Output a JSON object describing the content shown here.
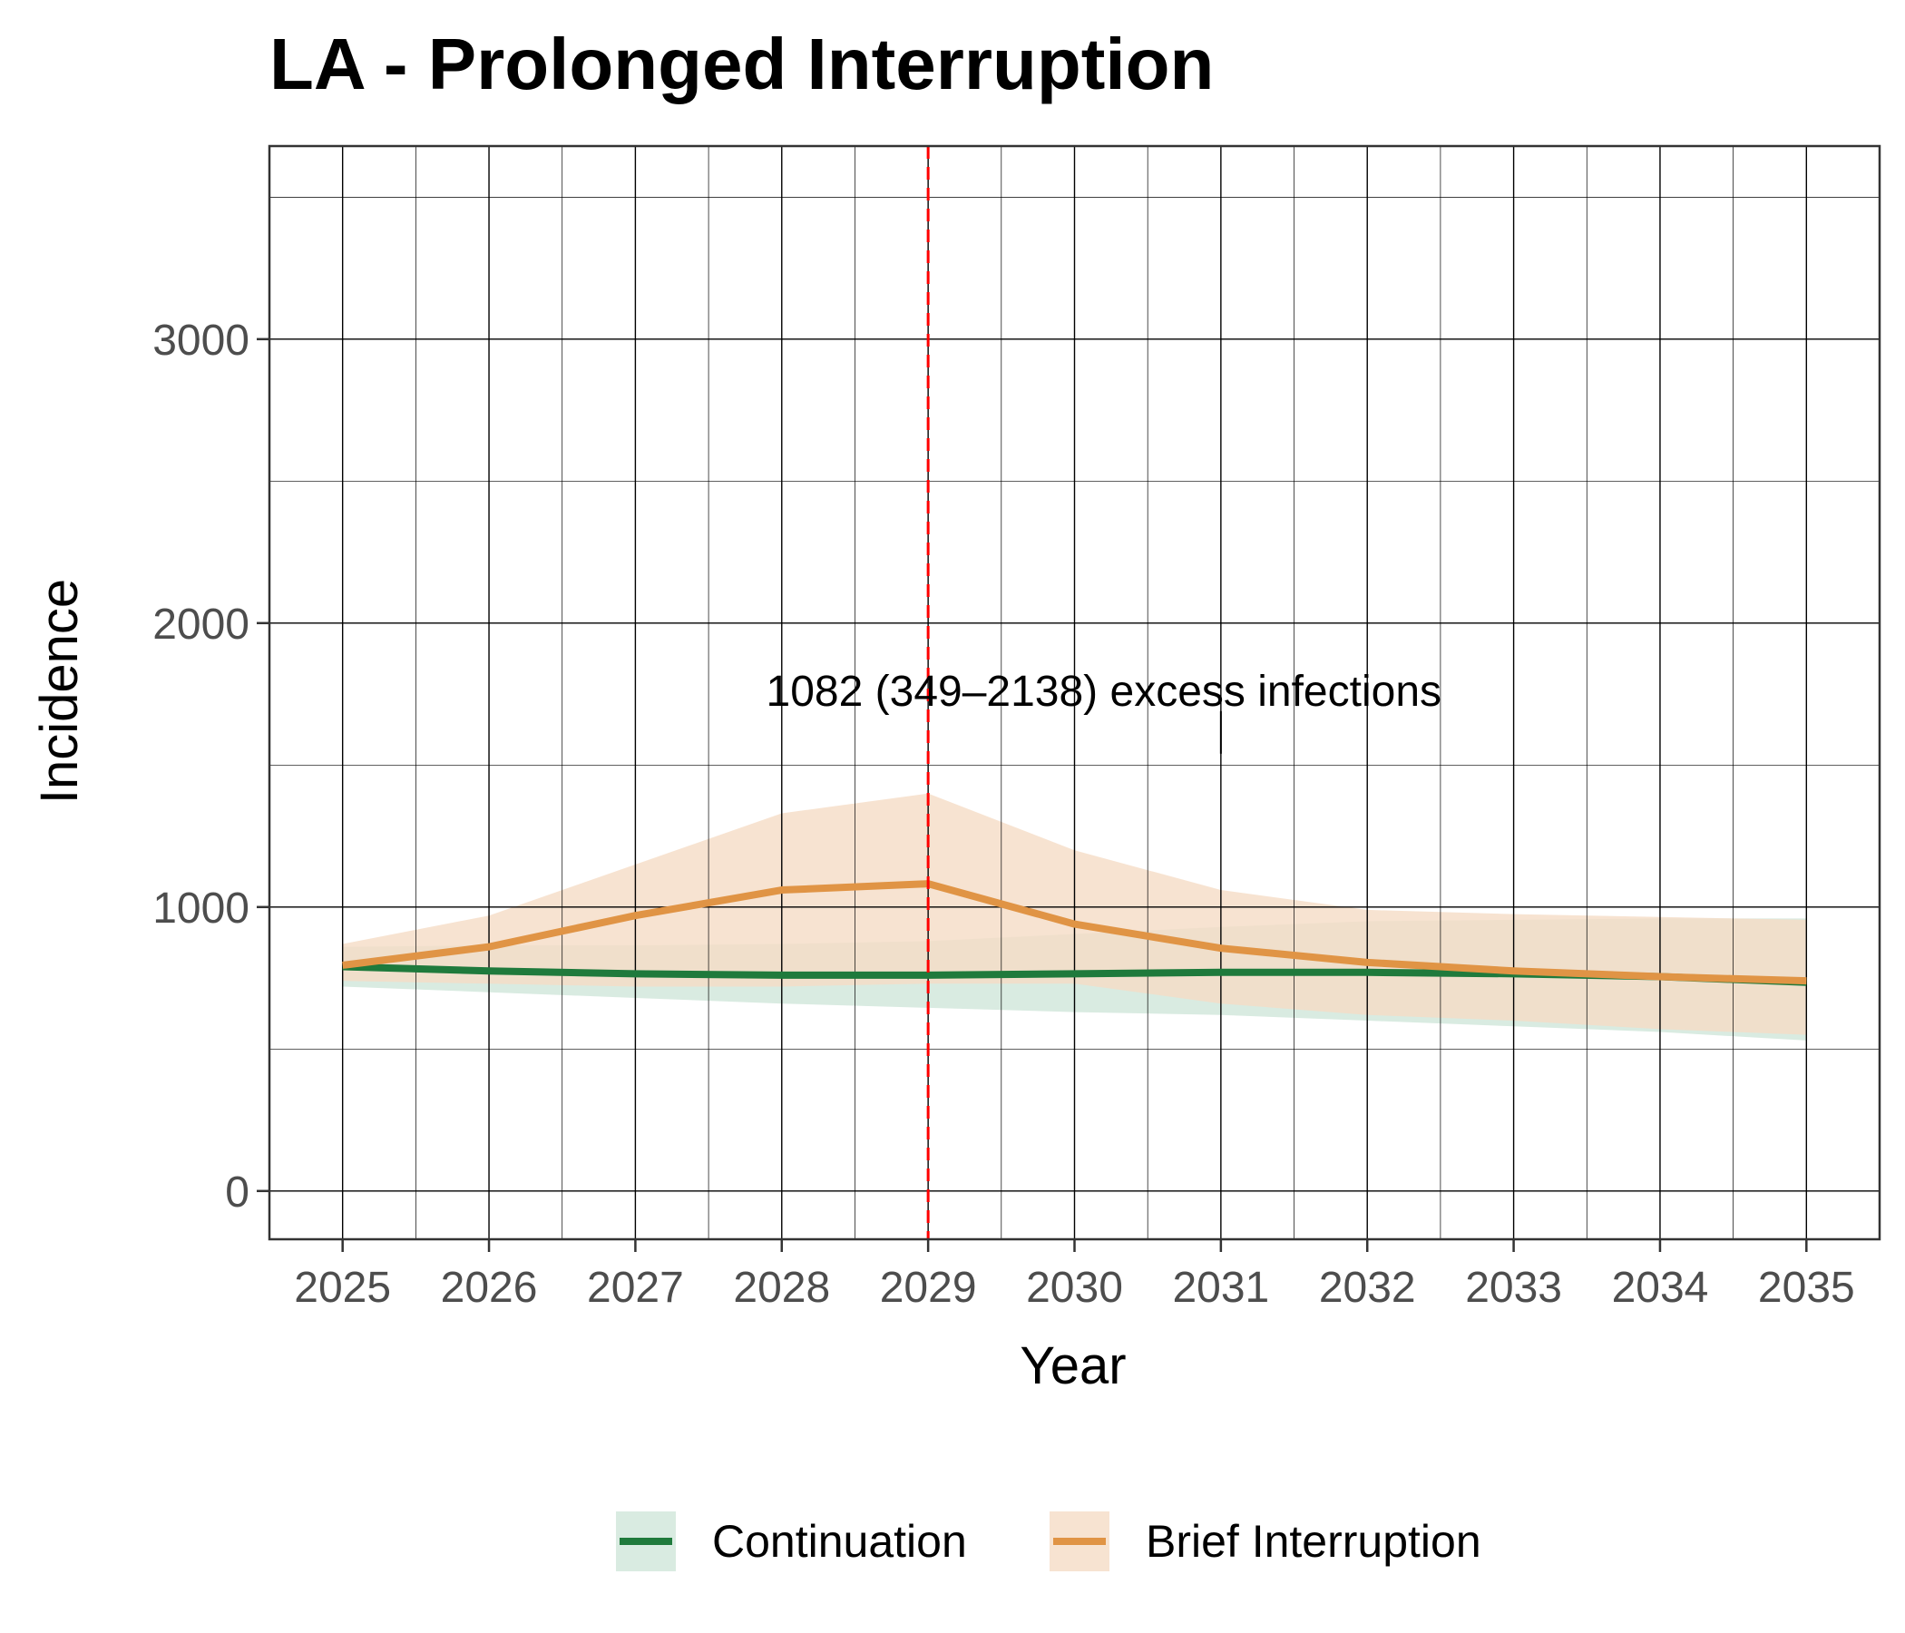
{
  "chart_data": {
    "type": "line",
    "title": "LA - Prolonged Interruption",
    "xlabel": "Year",
    "ylabel": "Incidence",
    "x": [
      2025,
      2026,
      2027,
      2028,
      2029,
      2030,
      2031,
      2032,
      2033,
      2034,
      2035
    ],
    "xlim": [
      2024.5,
      2035.5
    ],
    "ylim": [
      -170,
      3680
    ],
    "yticks": [
      0,
      1000,
      2000,
      3000
    ],
    "grid": true,
    "legend_position": "bottom",
    "series": [
      {
        "name": "Continuation",
        "color": "#1f7a3c",
        "band_color": "#cfe6d9",
        "values": [
          790,
          775,
          765,
          760,
          760,
          765,
          770,
          770,
          765,
          755,
          735
        ],
        "lower": [
          720,
          700,
          680,
          660,
          645,
          630,
          620,
          600,
          580,
          560,
          530
        ],
        "upper": [
          860,
          865,
          865,
          870,
          880,
          905,
          930,
          950,
          955,
          960,
          960
        ]
      },
      {
        "name": "Brief Interruption",
        "color": "#e09445",
        "band_color": "#f5dcc5",
        "values": [
          795,
          860,
          970,
          1060,
          1082,
          940,
          855,
          805,
          775,
          755,
          740
        ],
        "lower": [
          740,
          730,
          720,
          720,
          730,
          730,
          660,
          620,
          600,
          570,
          550
        ],
        "upper": [
          870,
          970,
          1150,
          1330,
          1400,
          1200,
          1060,
          990,
          975,
          965,
          955
        ]
      }
    ],
    "vline": {
      "x": 2029,
      "color": "#ff0000",
      "style": "dashed"
    },
    "annotation": {
      "text": "1082 (349–2138) excess infections",
      "x": 2030.2,
      "y": 1760
    }
  }
}
